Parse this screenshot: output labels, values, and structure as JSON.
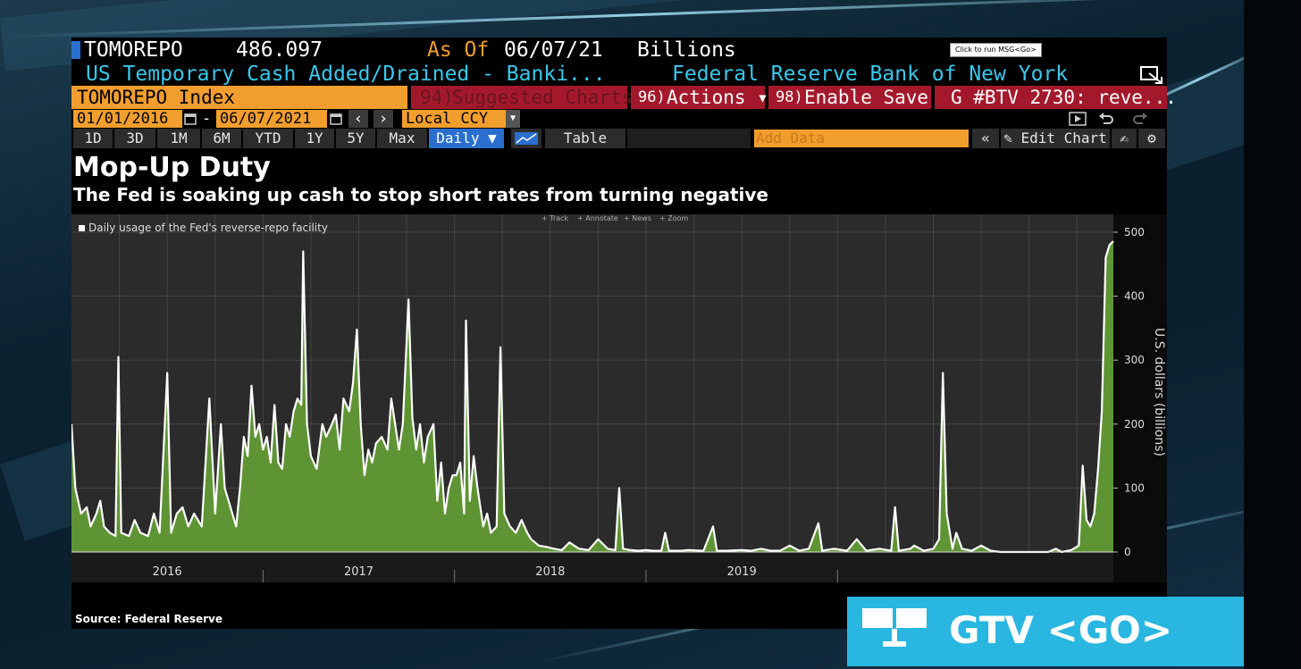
{
  "header": {
    "ticker": "TOMOREPO",
    "value": "486.097",
    "as_of_label": "As Of",
    "as_of_date": "06/07/21",
    "units": "Billions",
    "description": "US Temporary Cash Added/Drained - Banki...",
    "source_name": "Federal Reserve Bank of New York",
    "tooltip": "Click to run MSG<Go>"
  },
  "toolbar": {
    "security": "TOMOREPO Index",
    "suggested_num": "94)",
    "suggested_label": "Suggested Charts",
    "actions_num": "96)",
    "actions_label": "Actions ▾",
    "save_num": "98)",
    "save_label": "Enable Save",
    "btv_label": "G #BTV 2730: reve..."
  },
  "range": {
    "start": "01/01/2016",
    "dash": "-",
    "end": "06/07/2021",
    "currency": "Local CCY"
  },
  "periods": [
    "1D",
    "3D",
    "1M",
    "6M",
    "YTD",
    "1Y",
    "5Y",
    "Max"
  ],
  "frequency": "Daily ▼",
  "table_label": "Table",
  "add_data_placeholder": "Add Data",
  "edit_chart_label": "Edit Chart",
  "colors": {
    "amber": "#f29e2e",
    "red": "#a3192b",
    "cyan": "#38c8ec",
    "area": "#5f9434",
    "line": "#ffffff",
    "gtv": "#29b6e1"
  },
  "chart_title": "Mop-Up Duty",
  "chart_subtitle": "The Fed is soaking up cash to stop short rates from turning negative",
  "chart_tools": [
    "Track",
    "Annotate",
    "News",
    "Zoom"
  ],
  "chart_data": {
    "type": "area",
    "title": "Mop-Up Duty",
    "subtitle": "The Fed is soaking up cash to stop short rates from turning negative",
    "ylabel": "U.S. dollars (billions)",
    "ylim": [
      0,
      500
    ],
    "yticks": [
      0,
      100,
      200,
      300,
      400,
      500
    ],
    "xlim": [
      2016.0,
      2021.44
    ],
    "xticks": [
      "2016",
      "2017",
      "2018",
      "2019"
    ],
    "legend": "top-left",
    "grid": true,
    "series": [
      {
        "name": "Daily usage of the Fed's reverse-repo facility",
        "points": [
          [
            2016.0,
            200
          ],
          [
            2016.02,
            100
          ],
          [
            2016.05,
            60
          ],
          [
            2016.08,
            70
          ],
          [
            2016.1,
            40
          ],
          [
            2016.13,
            60
          ],
          [
            2016.15,
            80
          ],
          [
            2016.17,
            40
          ],
          [
            2016.2,
            30
          ],
          [
            2016.23,
            25
          ],
          [
            2016.245,
            305
          ],
          [
            2016.26,
            30
          ],
          [
            2016.3,
            25
          ],
          [
            2016.33,
            50
          ],
          [
            2016.36,
            30
          ],
          [
            2016.4,
            25
          ],
          [
            2016.43,
            60
          ],
          [
            2016.46,
            30
          ],
          [
            2016.5,
            280
          ],
          [
            2016.52,
            30
          ],
          [
            2016.55,
            60
          ],
          [
            2016.58,
            70
          ],
          [
            2016.61,
            40
          ],
          [
            2016.64,
            60
          ],
          [
            2016.68,
            40
          ],
          [
            2016.72,
            240
          ],
          [
            2016.75,
            60
          ],
          [
            2016.78,
            200
          ],
          [
            2016.8,
            100
          ],
          [
            2016.82,
            80
          ],
          [
            2016.84,
            60
          ],
          [
            2016.86,
            40
          ],
          [
            2016.88,
            100
          ],
          [
            2016.9,
            180
          ],
          [
            2016.92,
            150
          ],
          [
            2016.94,
            260
          ],
          [
            2016.96,
            180
          ],
          [
            2016.98,
            200
          ],
          [
            2017.0,
            160
          ],
          [
            2017.02,
            180
          ],
          [
            2017.04,
            140
          ],
          [
            2017.06,
            230
          ],
          [
            2017.08,
            140
          ],
          [
            2017.1,
            130
          ],
          [
            2017.12,
            200
          ],
          [
            2017.14,
            180
          ],
          [
            2017.16,
            220
          ],
          [
            2017.18,
            240
          ],
          [
            2017.2,
            230
          ],
          [
            2017.21,
            470
          ],
          [
            2017.23,
            200
          ],
          [
            2017.25,
            150
          ],
          [
            2017.28,
            130
          ],
          [
            2017.31,
            200
          ],
          [
            2017.33,
            180
          ],
          [
            2017.36,
            200
          ],
          [
            2017.38,
            215
          ],
          [
            2017.4,
            160
          ],
          [
            2017.42,
            240
          ],
          [
            2017.45,
            220
          ],
          [
            2017.47,
            265
          ],
          [
            2017.49,
            348
          ],
          [
            2017.51,
            200
          ],
          [
            2017.53,
            120
          ],
          [
            2017.55,
            160
          ],
          [
            2017.57,
            140
          ],
          [
            2017.59,
            170
          ],
          [
            2017.62,
            180
          ],
          [
            2017.65,
            160
          ],
          [
            2017.67,
            240
          ],
          [
            2017.69,
            200
          ],
          [
            2017.71,
            160
          ],
          [
            2017.73,
            200
          ],
          [
            2017.76,
            395
          ],
          [
            2017.78,
            210
          ],
          [
            2017.8,
            160
          ],
          [
            2017.82,
            200
          ],
          [
            2017.84,
            140
          ],
          [
            2017.86,
            180
          ],
          [
            2017.89,
            200
          ],
          [
            2017.91,
            80
          ],
          [
            2017.93,
            140
          ],
          [
            2017.95,
            60
          ],
          [
            2017.97,
            100
          ],
          [
            2017.99,
            120
          ],
          [
            2018.01,
            120
          ],
          [
            2018.03,
            140
          ],
          [
            2018.05,
            60
          ],
          [
            2018.06,
            362
          ],
          [
            2018.08,
            80
          ],
          [
            2018.1,
            150
          ],
          [
            2018.12,
            100
          ],
          [
            2018.15,
            40
          ],
          [
            2018.17,
            60
          ],
          [
            2018.19,
            30
          ],
          [
            2018.22,
            40
          ],
          [
            2018.24,
            320
          ],
          [
            2018.26,
            60
          ],
          [
            2018.29,
            40
          ],
          [
            2018.32,
            30
          ],
          [
            2018.35,
            50
          ],
          [
            2018.38,
            30
          ],
          [
            2018.4,
            20
          ],
          [
            2018.44,
            10
          ],
          [
            2018.48,
            8
          ],
          [
            2018.52,
            5
          ],
          [
            2018.56,
            3
          ],
          [
            2018.6,
            15
          ],
          [
            2018.65,
            5
          ],
          [
            2018.7,
            3
          ],
          [
            2018.75,
            20
          ],
          [
            2018.8,
            5
          ],
          [
            2018.84,
            3
          ],
          [
            2018.86,
            100
          ],
          [
            2018.88,
            5
          ],
          [
            2018.92,
            3
          ],
          [
            2018.96,
            2
          ],
          [
            2019.0,
            3
          ],
          [
            2019.04,
            2
          ],
          [
            2019.08,
            2
          ],
          [
            2019.1,
            30
          ],
          [
            2019.12,
            2
          ],
          [
            2019.18,
            2
          ],
          [
            2019.22,
            3
          ],
          [
            2019.3,
            2
          ],
          [
            2019.35,
            40
          ],
          [
            2019.37,
            2
          ],
          [
            2019.42,
            2
          ],
          [
            2019.5,
            3
          ],
          [
            2019.55,
            2
          ],
          [
            2019.6,
            5
          ],
          [
            2019.65,
            2
          ],
          [
            2019.7,
            2
          ],
          [
            2019.75,
            10
          ],
          [
            2019.8,
            2
          ],
          [
            2019.85,
            5
          ],
          [
            2019.9,
            45
          ],
          [
            2019.92,
            2
          ],
          [
            2019.98,
            5
          ],
          [
            2020.05,
            2
          ],
          [
            2020.1,
            20
          ],
          [
            2020.15,
            2
          ],
          [
            2020.22,
            5
          ],
          [
            2020.28,
            2
          ],
          [
            2020.3,
            70
          ],
          [
            2020.32,
            2
          ],
          [
            2020.38,
            5
          ],
          [
            2020.4,
            10
          ],
          [
            2020.45,
            2
          ],
          [
            2020.5,
            5
          ],
          [
            2020.53,
            20
          ],
          [
            2020.55,
            280
          ],
          [
            2020.57,
            60
          ],
          [
            2020.6,
            5
          ],
          [
            2020.62,
            30
          ],
          [
            2020.65,
            5
          ],
          [
            2020.7,
            2
          ],
          [
            2020.75,
            10
          ],
          [
            2020.8,
            2
          ],
          [
            2020.85,
            0
          ],
          [
            2020.95,
            0
          ],
          [
            2021.05,
            0
          ],
          [
            2021.1,
            0
          ],
          [
            2021.14,
            5
          ],
          [
            2021.17,
            0
          ],
          [
            2021.22,
            3
          ],
          [
            2021.26,
            10
          ],
          [
            2021.28,
            135
          ],
          [
            2021.3,
            50
          ],
          [
            2021.32,
            40
          ],
          [
            2021.34,
            60
          ],
          [
            2021.36,
            130
          ],
          [
            2021.38,
            220
          ],
          [
            2021.4,
            460
          ],
          [
            2021.42,
            480
          ],
          [
            2021.44,
            486
          ]
        ]
      }
    ]
  },
  "source_note": "Source: Federal Reserve",
  "gtv_label": "GTV <GO>"
}
